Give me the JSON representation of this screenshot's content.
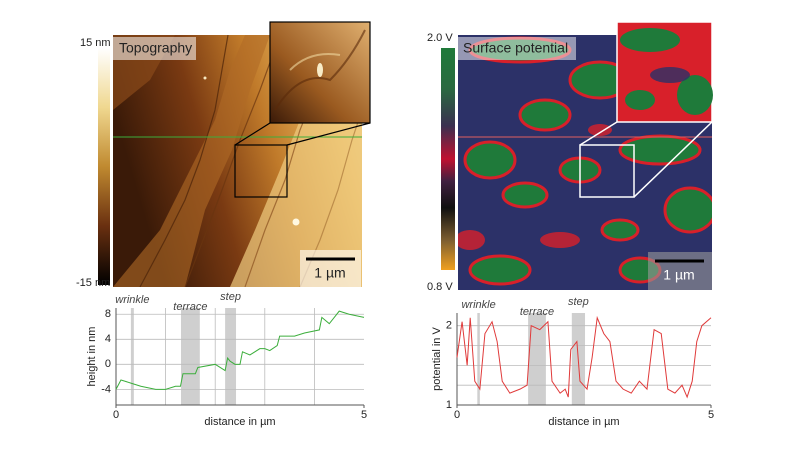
{
  "panels": [
    {
      "title": "Topography",
      "colorbar_max": "15 nm",
      "colorbar_min": "-15 nm",
      "scale_bar": "1 µm"
    },
    {
      "title": "Surface potential",
      "colorbar_max": "2.0 V",
      "colorbar_min": "0.8 V",
      "scale_bar": "1 µm"
    }
  ],
  "chart_data": [
    {
      "type": "line",
      "x_label": "distance in µm",
      "y_label": "height in nm",
      "x": [
        0,
        0.1,
        0.3,
        0.5,
        0.8,
        1.0,
        1.2,
        1.3,
        1.35,
        1.6,
        1.65,
        2.0,
        2.2,
        2.25,
        2.3,
        2.4,
        2.5,
        2.55,
        2.7,
        2.9,
        3.0,
        3.1,
        3.25,
        3.3,
        3.6,
        3.8,
        4.1,
        4.15,
        4.3,
        4.4,
        4.5,
        4.7,
        5
      ],
      "series": [
        {
          "color": "#3cae3c",
          "values": [
            -4,
            -2.5,
            -3,
            -3.5,
            -4,
            -4,
            -3.5,
            -3.5,
            -1.5,
            -1.5,
            -0.5,
            0,
            -1,
            1,
            0.5,
            0,
            0,
            2,
            1.5,
            2.5,
            2.5,
            2.2,
            3,
            4.5,
            4.5,
            5,
            5.5,
            7.5,
            6.5,
            7.5,
            8.5,
            8,
            7.5
          ]
        }
      ],
      "xlim": [
        0,
        5
      ],
      "xticks": [
        0,
        5
      ],
      "minor_xticks": [
        1,
        2,
        3,
        4
      ],
      "ylim": [
        -6.5,
        9
      ],
      "yticks": [
        -4,
        0,
        4,
        8
      ],
      "grid": true,
      "highlights": [
        {
          "label": "wrinkle",
          "x": [
            0.3,
            0.36
          ]
        },
        {
          "label": "terrace",
          "x": [
            1.31,
            1.69
          ]
        },
        {
          "label": "step",
          "x": [
            2.2,
            2.42
          ]
        }
      ]
    },
    {
      "type": "line",
      "x_label": "distance in µm",
      "y_label": "potential in V",
      "x": [
        0,
        0.1,
        0.2,
        0.26,
        0.35,
        0.45,
        0.55,
        0.69,
        0.79,
        0.89,
        1.04,
        1.24,
        1.38,
        1.46,
        1.63,
        1.79,
        1.87,
        2.03,
        2.13,
        2.19,
        2.24,
        2.36,
        2.42,
        2.56,
        2.66,
        2.76,
        2.89,
        3.01,
        3.13,
        3.27,
        3.43,
        3.59,
        3.74,
        3.88,
        4.02,
        4.15,
        4.29,
        4.43,
        4.53,
        4.63,
        4.72,
        4.82,
        5.0
      ],
      "series": [
        {
          "color": "#e03a3a",
          "values": [
            1.6,
            2.05,
            1.5,
            2.1,
            1.3,
            1.2,
            1.9,
            2.05,
            1.8,
            1.3,
            1.15,
            1.2,
            1.25,
            2.0,
            1.95,
            2.05,
            1.3,
            1.15,
            1.2,
            1.1,
            1.7,
            1.8,
            1.3,
            1.2,
            1.6,
            2.1,
            1.9,
            1.8,
            1.3,
            1.2,
            1.15,
            1.3,
            1.2,
            1.95,
            1.9,
            1.2,
            1.15,
            1.25,
            1.1,
            1.3,
            1.8,
            2.0,
            2.1
          ]
        }
      ],
      "xlim": [
        0,
        5
      ],
      "xticks": [
        0,
        5
      ],
      "minor_xticks": [],
      "ylim": [
        1,
        2.16
      ],
      "yticks": [
        1,
        2
      ],
      "minor_yticks": [
        1.25,
        1.5,
        1.75
      ],
      "grid": true,
      "highlights": [
        {
          "label": "wrinkle",
          "x": [
            0.4,
            0.45
          ]
        },
        {
          "label": "terrace",
          "x": [
            1.4,
            1.75
          ]
        },
        {
          "label": "step",
          "x": [
            2.26,
            2.52
          ]
        }
      ]
    }
  ]
}
